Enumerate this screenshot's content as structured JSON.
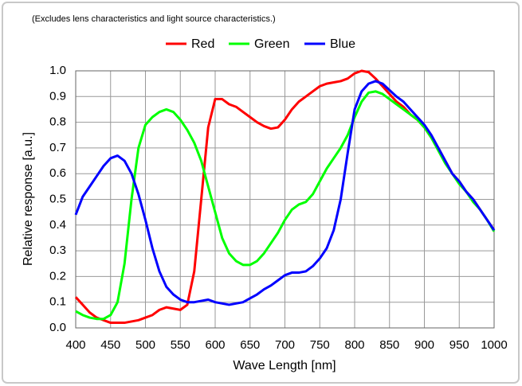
{
  "chart_data": {
    "type": "line",
    "note_text": "(Excludes lens characteristics and light source characteristics.)",
    "x_label": "Wave Length [nm]",
    "y_label": "Relative response [a.u.]",
    "x": [
      400,
      410,
      420,
      430,
      440,
      450,
      460,
      470,
      480,
      490,
      500,
      510,
      520,
      530,
      540,
      550,
      560,
      570,
      580,
      590,
      600,
      610,
      620,
      630,
      640,
      650,
      660,
      670,
      680,
      690,
      700,
      710,
      720,
      730,
      740,
      750,
      760,
      770,
      780,
      790,
      800,
      810,
      820,
      830,
      840,
      850,
      860,
      870,
      880,
      890,
      900,
      910,
      920,
      930,
      940,
      950,
      960,
      970,
      980,
      990,
      1000
    ],
    "series": [
      {
        "name": "Red",
        "color": "#ff0000",
        "values": [
          0.12,
          0.09,
          0.06,
          0.04,
          0.03,
          0.02,
          0.02,
          0.02,
          0.025,
          0.03,
          0.04,
          0.05,
          0.07,
          0.08,
          0.075,
          0.07,
          0.09,
          0.22,
          0.5,
          0.78,
          0.89,
          0.89,
          0.87,
          0.86,
          0.84,
          0.82,
          0.8,
          0.785,
          0.775,
          0.78,
          0.81,
          0.85,
          0.88,
          0.9,
          0.92,
          0.94,
          0.95,
          0.955,
          0.96,
          0.97,
          0.99,
          1.0,
          0.995,
          0.97,
          0.94,
          0.91,
          0.88,
          0.86,
          0.83,
          0.81,
          0.78,
          0.74,
          0.7,
          0.65,
          0.6,
          0.57,
          0.53,
          0.5,
          0.46,
          0.42,
          0.38
        ]
      },
      {
        "name": "Green",
        "color": "#00ff00",
        "values": [
          0.065,
          0.05,
          0.04,
          0.035,
          0.035,
          0.05,
          0.1,
          0.25,
          0.5,
          0.7,
          0.79,
          0.82,
          0.84,
          0.85,
          0.84,
          0.81,
          0.77,
          0.72,
          0.65,
          0.55,
          0.45,
          0.35,
          0.29,
          0.26,
          0.245,
          0.245,
          0.26,
          0.29,
          0.33,
          0.37,
          0.42,
          0.46,
          0.48,
          0.49,
          0.52,
          0.57,
          0.62,
          0.66,
          0.7,
          0.75,
          0.82,
          0.88,
          0.915,
          0.92,
          0.91,
          0.89,
          0.87,
          0.85,
          0.83,
          0.81,
          0.78,
          0.74,
          0.69,
          0.64,
          0.6,
          0.56,
          0.53,
          0.49,
          0.46,
          0.42,
          0.375
        ]
      },
      {
        "name": "Blue",
        "color": "#0000ff",
        "values": [
          0.44,
          0.51,
          0.55,
          0.59,
          0.63,
          0.66,
          0.67,
          0.65,
          0.6,
          0.52,
          0.42,
          0.31,
          0.22,
          0.16,
          0.13,
          0.11,
          0.1,
          0.1,
          0.105,
          0.11,
          0.1,
          0.095,
          0.09,
          0.095,
          0.1,
          0.115,
          0.13,
          0.15,
          0.165,
          0.185,
          0.205,
          0.215,
          0.215,
          0.22,
          0.24,
          0.27,
          0.31,
          0.38,
          0.5,
          0.68,
          0.85,
          0.92,
          0.95,
          0.96,
          0.95,
          0.925,
          0.9,
          0.88,
          0.85,
          0.82,
          0.79,
          0.75,
          0.7,
          0.65,
          0.6,
          0.57,
          0.53,
          0.5,
          0.46,
          0.42,
          0.38
        ]
      }
    ],
    "xlim": [
      400,
      1000
    ],
    "xticks": [
      400,
      450,
      500,
      550,
      600,
      650,
      700,
      750,
      800,
      850,
      900,
      950,
      1000
    ],
    "ylim": [
      0,
      1
    ],
    "yticks": [
      {
        "value": 0,
        "label": "0.0"
      },
      0.1,
      0.2,
      0.3,
      0.4,
      0.5,
      0.6,
      0.7,
      0.8,
      0.9,
      {
        "value": 1,
        "label": "1.0"
      }
    ],
    "grid": true
  }
}
